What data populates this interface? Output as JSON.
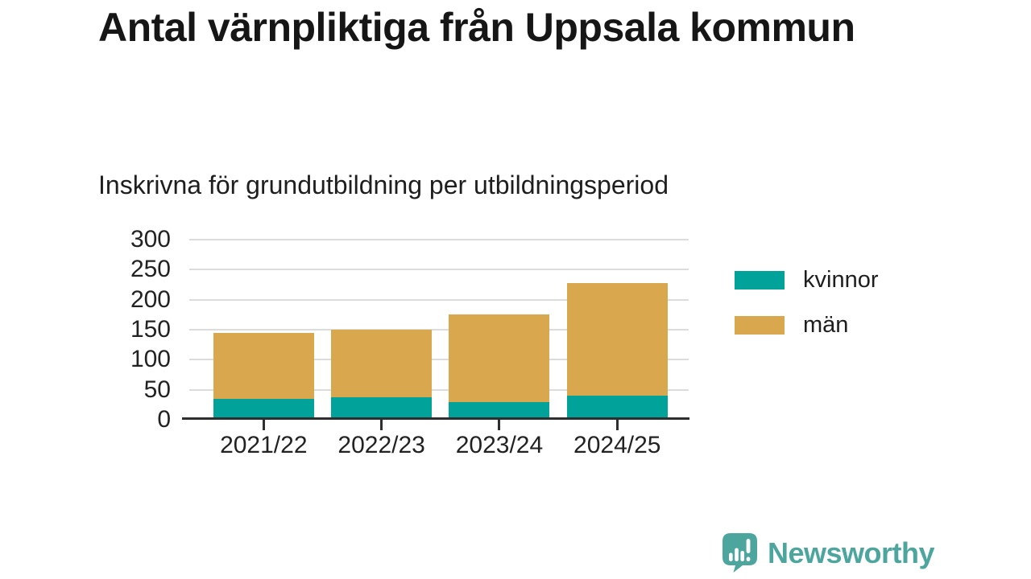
{
  "title": "Antal värnpliktiga från Uppsala kommun",
  "subtitle": "Inskrivna för grundutbildning per utbildningsperiod",
  "chart_data": {
    "type": "bar",
    "stacked": true,
    "title": "Antal värnpliktiga från Uppsala kommun",
    "subtitle": "Inskrivna för grundutbildning per utbildningsperiod",
    "categories": [
      "2021/22",
      "2022/23",
      "2023/24",
      "2024/25"
    ],
    "series": [
      {
        "name": "kvinnor",
        "color": "#00a299",
        "values": [
          35,
          38,
          29,
          40
        ]
      },
      {
        "name": "män",
        "color": "#d9a84e",
        "values": [
          110,
          112,
          147,
          188
        ]
      }
    ],
    "totals": [
      145,
      150,
      176,
      228
    ],
    "ylim": [
      0,
      300
    ],
    "yticks": [
      0,
      50,
      100,
      150,
      200,
      250,
      300
    ],
    "grid": true,
    "legend_position": "right"
  },
  "branding": {
    "logo_text": "Newsworthy",
    "logo_color": "#4da69e",
    "logo_icon": "bar-chart-speech-bubble-icon"
  },
  "colors": {
    "background": "#ffffff",
    "text": "#1a1a1a",
    "gridline": "#dcdcdc",
    "axis": "#2e2e2e",
    "kvinnor": "#00a299",
    "man": "#d9a84e"
  }
}
